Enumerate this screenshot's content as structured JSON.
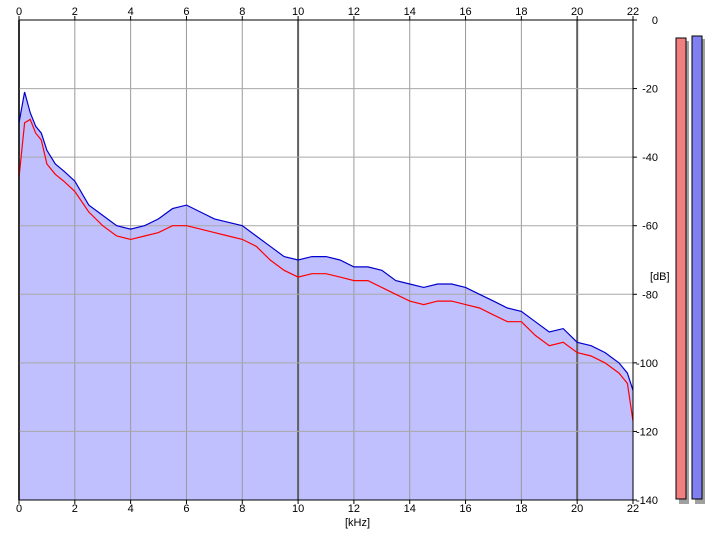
{
  "chart_data": {
    "type": "area",
    "title": "",
    "xlabel": "[kHz]",
    "ylabel": "[dB]",
    "xlim": [
      0,
      22
    ],
    "ylim": [
      -140,
      0
    ],
    "x_ticks": [
      0,
      2,
      4,
      6,
      8,
      10,
      12,
      14,
      16,
      18,
      20,
      22
    ],
    "y_ticks": [
      0,
      -20,
      -40,
      -60,
      -80,
      -100,
      -120,
      -140
    ],
    "y_tick_labels": [
      "0",
      "-20",
      "-40",
      "-60",
      "-80",
      "-100",
      "-120",
      "-140"
    ],
    "grid": true,
    "fill_color": "#c0c0ff",
    "series": [
      {
        "color": "#ff0000",
        "x": [
          0,
          0.2,
          0.4,
          0.6,
          0.8,
          1.0,
          1.3,
          1.6,
          2.0,
          2.5,
          3.0,
          3.5,
          4.0,
          4.5,
          5.0,
          5.5,
          6.0,
          6.5,
          7.0,
          7.5,
          8.0,
          8.5,
          9.0,
          9.5,
          10.0,
          10.5,
          11.0,
          11.5,
          12.0,
          12.5,
          13.0,
          13.5,
          14.0,
          14.5,
          15.0,
          15.5,
          16.0,
          16.5,
          17.0,
          17.5,
          18.0,
          18.5,
          19.0,
          19.5,
          20.0,
          20.5,
          21.0,
          21.5,
          21.8,
          22.0
        ],
        "y": [
          -46,
          -30,
          -29,
          -33,
          -35,
          -42,
          -45,
          -47,
          -50,
          -56,
          -60,
          -63,
          -64,
          -63,
          -62,
          -60,
          -60,
          -61,
          -62,
          -63,
          -64,
          -66,
          -70,
          -73,
          -75,
          -74,
          -74,
          -75,
          -76,
          -76,
          -78,
          -80,
          -82,
          -83,
          -82,
          -82,
          -83,
          -84,
          -86,
          -88,
          -88,
          -92,
          -95,
          -94,
          -97,
          -98,
          -100,
          -103,
          -106,
          -117
        ]
      },
      {
        "color": "#0000cc",
        "x": [
          0,
          0.2,
          0.4,
          0.6,
          0.8,
          1.0,
          1.3,
          1.6,
          2.0,
          2.5,
          3.0,
          3.5,
          4.0,
          4.5,
          5.0,
          5.5,
          6.0,
          6.5,
          7.0,
          7.5,
          8.0,
          8.5,
          9.0,
          9.5,
          10.0,
          10.5,
          11.0,
          11.5,
          12.0,
          12.5,
          13.0,
          13.5,
          14.0,
          14.5,
          15.0,
          15.5,
          16.0,
          16.5,
          17.0,
          17.5,
          18.0,
          18.5,
          19.0,
          19.5,
          20.0,
          20.5,
          21.0,
          21.5,
          21.8,
          22.0
        ],
        "y": [
          -30,
          -21,
          -27,
          -31,
          -33,
          -38,
          -42,
          -44,
          -47,
          -54,
          -57,
          -60,
          -61,
          -60,
          -58,
          -55,
          -54,
          -56,
          -58,
          -59,
          -60,
          -63,
          -66,
          -69,
          -70,
          -69,
          -69,
          -70,
          -72,
          -72,
          -73,
          -76,
          -77,
          -78,
          -77,
          -77,
          -78,
          -80,
          -82,
          -84,
          -85,
          -88,
          -91,
          -90,
          -94,
          -95,
          -97,
          -100,
          -103,
          -108
        ]
      }
    ]
  },
  "meters": {
    "left_color": "#f08080",
    "right_color": "#8080f0"
  }
}
